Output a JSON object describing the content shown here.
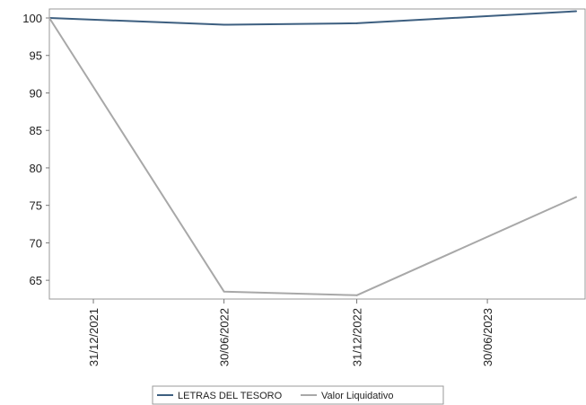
{
  "chart_data": {
    "type": "line",
    "title": "",
    "xlabel": "",
    "ylabel": "",
    "x_ticks": [
      "31/12/2021",
      "30/06/2022",
      "31/12/2022",
      "30/06/2023"
    ],
    "ylim": [
      62.5,
      101.2
    ],
    "y_ticks": [
      65,
      70,
      75,
      80,
      85,
      90,
      95,
      100
    ],
    "grid": false,
    "legend_position": "bottom",
    "series": [
      {
        "name": "LETRAS DEL TESORO",
        "color": "#3d5f80",
        "points": [
          {
            "x": "2021-10-31",
            "y": 100.0
          },
          {
            "x": "2022-06-30",
            "y": 99.1
          },
          {
            "x": "2022-12-31",
            "y": 99.3
          },
          {
            "x": "2023-10-31",
            "y": 100.9
          }
        ]
      },
      {
        "name": "Valor Liquidativo",
        "color": "#a8a8a8",
        "points": [
          {
            "x": "2021-10-31",
            "y": 100.0
          },
          {
            "x": "2022-06-30",
            "y": 63.5
          },
          {
            "x": "2022-12-31",
            "y": 63.0
          },
          {
            "x": "2023-10-31",
            "y": 76.1
          }
        ]
      }
    ]
  }
}
